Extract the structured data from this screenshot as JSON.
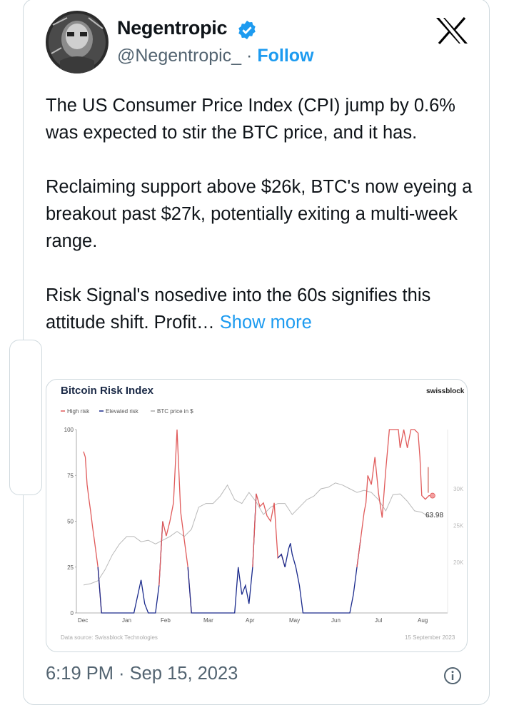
{
  "tweet": {
    "author_name": "Negentropic",
    "handle": "@Negentropic_",
    "separator": "·",
    "follow_label": "Follow",
    "paragraphs": [
      "The US Consumer Price Index (CPI) jump by 0.6% was expected to stir the BTC price, and it has.",
      "Reclaiming support above $26k, BTC's now eyeing a breakout past $27k, potentially exiting a multi-week range.",
      "Risk Signal's nosedive into the 60s signifies this attitude shift. Profit…"
    ],
    "show_more_label": "Show more",
    "timestamp": "6:19 PM · Sep 15, 2023",
    "icons": {
      "verified": "verified-badge-icon",
      "brand": "x-logo-icon",
      "info": "info-icon"
    },
    "colors": {
      "accent": "#1d9bf0",
      "muted": "#536471"
    }
  },
  "chart": {
    "title": "Bitcoin Risk Index",
    "brand": "swissblock",
    "legend": [
      "High risk",
      "Elevated risk",
      "BTC price in $"
    ],
    "y_ticks": [
      "100",
      "75",
      "50",
      "25",
      "0"
    ],
    "y_right_ticks": [
      "30K",
      "25K",
      "20K"
    ],
    "x_ticks": [
      "Dec",
      "Jan",
      "Feb",
      "Mar",
      "Apr",
      "May",
      "Jun",
      "Jul",
      "Aug"
    ],
    "annotation": "63.98",
    "source": "Data source: Swissblock Technologies",
    "date": "15 September 2023"
  },
  "chart_data": {
    "type": "line",
    "title": "Bitcoin Risk Index",
    "ylim": [
      0,
      100
    ],
    "y2_ticks_k": [
      20,
      25,
      30
    ],
    "x_ticks": [
      "Dec",
      "Jan",
      "Feb",
      "Mar",
      "Apr",
      "May",
      "Jun",
      "Jul",
      "Aug"
    ],
    "x_index_range": [
      0,
      100
    ],
    "series": [
      {
        "name": "Bitcoin Risk Index",
        "axis": "left",
        "x": [
          0,
          0.5,
          1,
          1.5,
          2,
          2.5,
          3,
          4,
          5,
          6,
          7,
          8,
          10,
          12,
          14,
          16,
          17,
          18,
          19,
          20,
          21,
          22,
          23,
          24,
          25,
          26,
          27,
          28,
          29,
          30,
          32,
          34,
          36,
          38,
          40,
          42,
          43,
          44,
          45,
          46,
          47,
          48,
          49,
          50,
          51,
          52,
          53,
          54,
          55,
          56,
          57,
          57.5,
          58,
          59,
          60,
          61,
          62,
          64,
          66,
          68,
          70,
          72,
          74,
          75,
          76,
          77,
          78,
          78.5,
          79,
          80,
          81,
          82,
          83,
          84,
          85,
          86,
          87,
          87.5,
          88,
          89,
          90,
          91,
          92,
          93,
          93.5,
          94,
          95,
          96,
          96.5,
          97
        ],
        "y": [
          88,
          85,
          70,
          62,
          55,
          47,
          40,
          25,
          0,
          0,
          0,
          0,
          0,
          0,
          0,
          18,
          5,
          0,
          0,
          0,
          15,
          50,
          42,
          50,
          60,
          100,
          55,
          40,
          25,
          0,
          0,
          0,
          0,
          0,
          0,
          0,
          25,
          10,
          15,
          5,
          25,
          65,
          58,
          60,
          53,
          50,
          60,
          30,
          32,
          25,
          35,
          38,
          32,
          25,
          15,
          0,
          0,
          0,
          0,
          0,
          0,
          0,
          0,
          10,
          25,
          40,
          55,
          60,
          75,
          70,
          85,
          65,
          52,
          78,
          100,
          100,
          100,
          100,
          90,
          100,
          90,
          100,
          100,
          98,
          85,
          64,
          62,
          63.98,
          64,
          63.98
        ],
        "segments": [
          {
            "label": "High risk",
            "x_from": 0,
            "x_to": 4.5
          },
          {
            "label": "Elevated risk",
            "x_from": 4.5,
            "x_to": 21.5
          },
          {
            "label": "High risk",
            "x_from": 21.5,
            "x_to": 29.5
          },
          {
            "label": "Elevated risk",
            "x_from": 29.5,
            "x_to": 47.5
          },
          {
            "label": "High risk",
            "x_from": 47.5,
            "x_to": 55
          },
          {
            "label": "Elevated risk",
            "x_from": 55,
            "x_to": 76.5
          },
          {
            "label": "High risk",
            "x_from": 76.5,
            "x_to": 97
          }
        ]
      },
      {
        "name": "BTC price in $",
        "axis": "right",
        "x": [
          0,
          2,
          4,
          6,
          8,
          10,
          12,
          14,
          16,
          18,
          20,
          22,
          24,
          26,
          28,
          30,
          32,
          34,
          36,
          38,
          40,
          42,
          44,
          46,
          48,
          50,
          52,
          54,
          56,
          58,
          60,
          62,
          64,
          66,
          68,
          70,
          72,
          74,
          76,
          78,
          80,
          82,
          84,
          86,
          88,
          90,
          92,
          94,
          96,
          97
        ],
        "y_k": [
          16.9,
          17.1,
          17.5,
          19,
          21,
          22.5,
          23.5,
          23.5,
          22.8,
          23,
          22.5,
          23,
          23.5,
          24.2,
          23.5,
          24.5,
          27.5,
          28,
          28,
          29,
          30.5,
          28.5,
          28,
          29.5,
          28.2,
          26.5,
          27.5,
          28,
          28,
          26.5,
          27.5,
          28.5,
          29,
          30,
          30.2,
          30.8,
          30.5,
          30,
          29.5,
          29.8,
          29.5,
          28.5,
          27,
          29.2,
          29.3,
          28.3,
          27,
          26.8,
          26.2,
          26.5
        ]
      }
    ]
  }
}
